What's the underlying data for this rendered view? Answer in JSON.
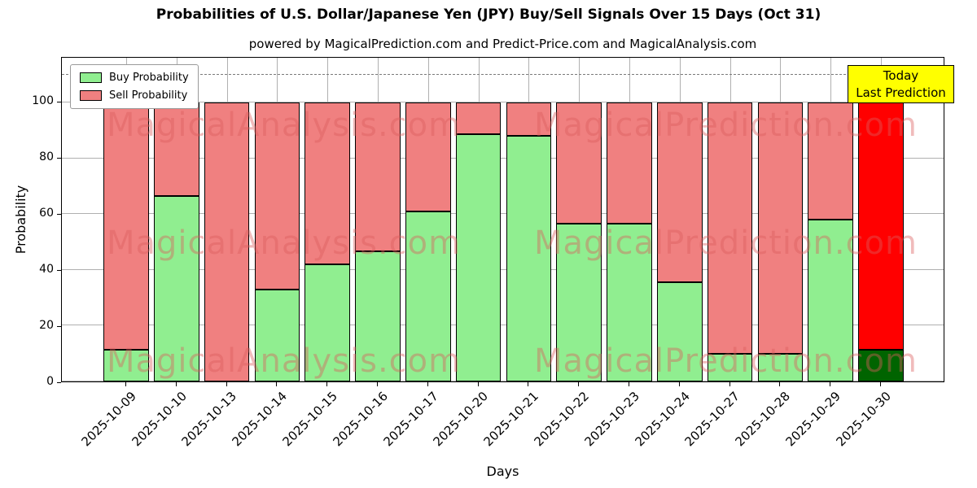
{
  "subtitle": "powered by MagicalPrediction.com and Predict-Price.com and MagicalAnalysis.com",
  "annotation": {
    "line1": "Today",
    "line2": "Last Prediction"
  },
  "watermarks": [
    "MagicalAnalysis.com",
    "MagicalPrediction.com"
  ],
  "colors": {
    "buy": "#90EE90",
    "sell": "#F08080",
    "today_buy": "#006400",
    "today_sell": "#FF0000",
    "annotation_bg": "#FFFF00",
    "grid": "#b0b0b0"
  },
  "chart_data": {
    "type": "bar",
    "stacked": true,
    "title": "Probabilities of U.S. Dollar/Japanese Yen (JPY) Buy/Sell Signals Over 15 Days (Oct 31)",
    "xlabel": "Days",
    "ylabel": "Probability",
    "legend_position": "upper left",
    "grid": true,
    "categories": [
      "2025-10-09",
      "2025-10-10",
      "2025-10-13",
      "2025-10-14",
      "2025-10-15",
      "2025-10-16",
      "2025-10-17",
      "2025-10-20",
      "2025-10-21",
      "2025-10-22",
      "2025-10-23",
      "2025-10-24",
      "2025-10-27",
      "2025-10-28",
      "2025-10-29",
      "2025-10-30"
    ],
    "series": [
      {
        "name": "Buy Probability",
        "values": [
          11.5,
          66.5,
          0,
          33,
          42,
          46.5,
          61,
          88.5,
          88,
          56.5,
          56.5,
          35.5,
          10,
          10,
          58,
          11.5
        ]
      },
      {
        "name": "Sell Probability",
        "values": [
          88.5,
          33.5,
          100,
          67,
          58,
          53.5,
          39,
          11.5,
          12,
          43.5,
          43.5,
          64.5,
          90,
          90,
          42,
          88.5
        ]
      }
    ],
    "today_index": 15,
    "yticks": [
      0,
      20,
      40,
      60,
      80,
      100
    ],
    "ylim": [
      0,
      116
    ],
    "dashed_line_y": 110
  }
}
